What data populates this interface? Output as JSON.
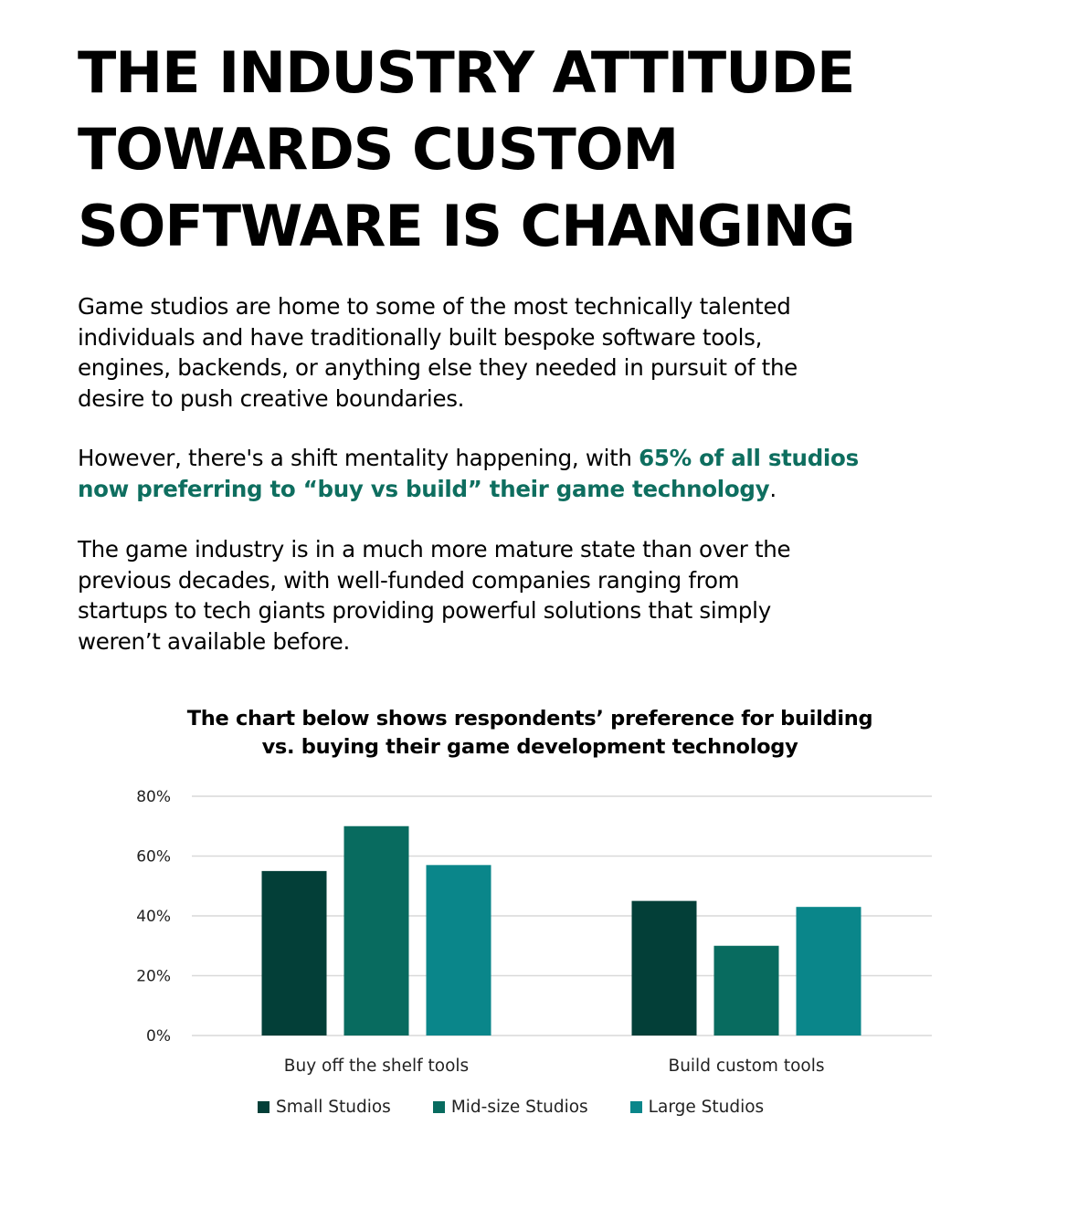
{
  "headline": {
    "lines": [
      "THE INDUSTRY ATTITUDE",
      "TOWARDS CUSTOM",
      "SOFTWARE IS CHANGING"
    ]
  },
  "paragraph1": {
    "lines": [
      "Game studios are home to some of the most technically talented",
      "individuals and have traditionally built bespoke software tools,",
      "engines, backends, or anything else they needed in pursuit of the",
      "desire to push creative boundaries."
    ]
  },
  "paragraph2": {
    "line1_plain": "However, there's a shift mentality happening, with ",
    "line1_highlight": "65% of all studios",
    "line2_highlight": "now preferring to “buy vs build” their game technology",
    "line2_end": "."
  },
  "paragraph3": {
    "lines": [
      "The game industry is in a much more mature state than over the",
      "previous decades, with well-funded companies ranging from",
      "startups to tech giants providing powerful solutions that simply",
      "weren’t available before."
    ]
  },
  "colors": {
    "highlight": "#0e6e5f",
    "small": "#033f38",
    "mid": "#086b5f",
    "large": "#0a868a",
    "grid": "#d9d9d9"
  },
  "chart_data": {
    "type": "bar",
    "title_lines": [
      "The chart below shows respondents’ preference for building",
      "vs. buying their game development technology"
    ],
    "categories": [
      "Buy off the shelf tools",
      "Build custom tools"
    ],
    "series": [
      {
        "name": "Small Studios",
        "values": [
          55,
          45
        ],
        "color": "#033f38"
      },
      {
        "name": "Mid-size Studios",
        "values": [
          70,
          30
        ],
        "color": "#086b5f"
      },
      {
        "name": "Large Studios",
        "values": [
          57,
          43
        ],
        "color": "#0a868a"
      }
    ],
    "ylim": [
      0,
      80
    ],
    "yticks": [
      0,
      20,
      40,
      60,
      80
    ],
    "ytick_labels": [
      "0%",
      "20%",
      "40%",
      "60%",
      "80%"
    ],
    "grid": true,
    "legend_position": "bottom"
  }
}
